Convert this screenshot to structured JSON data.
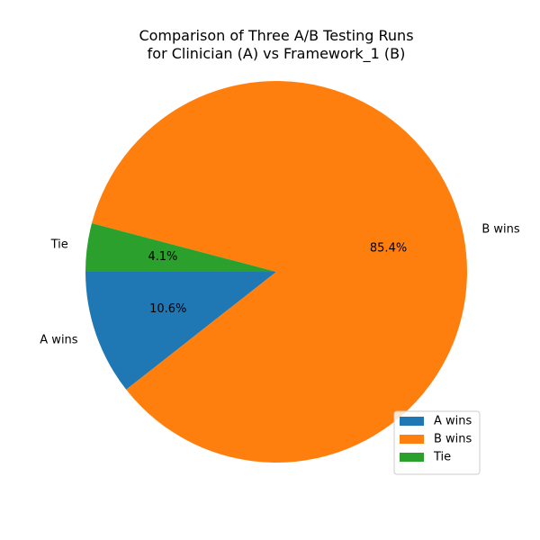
{
  "chart_data": {
    "type": "pie",
    "title_lines": [
      "Comparison of Three A/B Testing Runs",
      "for Clinician (A) vs Framework_1 (B)"
    ],
    "labels": [
      "A wins",
      "B wins",
      "Tie"
    ],
    "values": [
      10.6,
      85.4,
      4.1
    ],
    "percent_labels": [
      "10.6%",
      "85.4%",
      "4.1%"
    ],
    "colors": [
      "#1f77b4",
      "#ff7f0e",
      "#2ca02c"
    ],
    "start_angle_deg": 180,
    "direction": "counterclockwise",
    "legend": {
      "placement": "lower-right",
      "entries": [
        "A wins",
        "B wins",
        "Tie"
      ]
    }
  }
}
